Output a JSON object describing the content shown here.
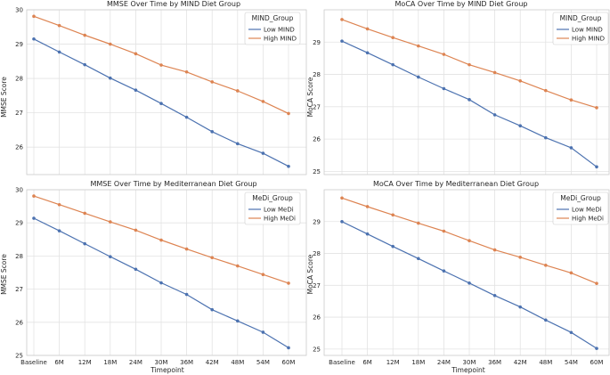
{
  "chart_data": [
    {
      "type": "line",
      "title": "MMSE Over Time by MIND Diet Group",
      "xlabel": "",
      "ylabel": "MMSE Score",
      "categories": [
        "Baseline",
        "6M",
        "12M",
        "18M",
        "24M",
        "30M",
        "36M",
        "42M",
        "48M",
        "54M",
        "60M"
      ],
      "show_xticklabels": false,
      "ylim": [
        25.2,
        30.0
      ],
      "yticks": [
        26,
        27,
        28,
        29,
        30
      ],
      "grid": true,
      "legend": {
        "title": "MIND_Group",
        "position": "top-right"
      },
      "series": [
        {
          "name": "Low MIND",
          "color": "#4c72b0",
          "values": [
            29.15,
            28.77,
            28.4,
            28.01,
            27.66,
            27.27,
            26.87,
            26.45,
            26.1,
            25.82,
            25.44
          ]
        },
        {
          "name": "High MIND",
          "color": "#dd8452",
          "values": [
            29.81,
            29.54,
            29.26,
            29.0,
            28.72,
            28.39,
            28.19,
            27.9,
            27.64,
            27.33,
            26.98
          ]
        }
      ]
    },
    {
      "type": "line",
      "title": "MoCA Over Time by MIND Diet Group",
      "xlabel": "",
      "ylabel": "MoCA Score",
      "categories": [
        "Baseline",
        "6M",
        "12M",
        "18M",
        "24M",
        "30M",
        "36M",
        "42M",
        "48M",
        "54M",
        "60M"
      ],
      "show_xticklabels": false,
      "ylim": [
        24.9,
        30.0
      ],
      "yticks": [
        25,
        26,
        27,
        28,
        29
      ],
      "grid": true,
      "legend": {
        "title": "MIND_Group",
        "position": "top-right"
      },
      "series": [
        {
          "name": "Low MIND",
          "color": "#4c72b0",
          "values": [
            29.03,
            28.67,
            28.3,
            27.92,
            27.56,
            27.22,
            26.75,
            26.41,
            26.04,
            25.73,
            25.14
          ]
        },
        {
          "name": "High MIND",
          "color": "#dd8452",
          "values": [
            29.7,
            29.41,
            29.14,
            28.88,
            28.62,
            28.3,
            28.06,
            27.8,
            27.5,
            27.21,
            26.97
          ]
        }
      ]
    },
    {
      "type": "line",
      "title": "MMSE Over Time by Mediterranean Diet Group",
      "xlabel": "Timepoint",
      "ylabel": "MMSE Score",
      "categories": [
        "Baseline",
        "6M",
        "12M",
        "18M",
        "24M",
        "30M",
        "36M",
        "42M",
        "48M",
        "54M",
        "60M"
      ],
      "show_xticklabels": true,
      "ylim": [
        25.0,
        30.0
      ],
      "yticks": [
        25,
        26,
        27,
        28,
        29,
        30
      ],
      "grid": true,
      "legend": {
        "title": "MeDi_Group",
        "position": "top-right"
      },
      "series": [
        {
          "name": "Low MeDi",
          "color": "#4c72b0",
          "values": [
            29.14,
            28.76,
            28.37,
            27.98,
            27.6,
            27.19,
            26.84,
            26.38,
            26.04,
            25.7,
            25.23
          ]
        },
        {
          "name": "High MeDi",
          "color": "#dd8452",
          "values": [
            29.81,
            29.55,
            29.29,
            29.03,
            28.78,
            28.48,
            28.21,
            27.95,
            27.7,
            27.44,
            27.18
          ]
        }
      ]
    },
    {
      "type": "line",
      "title": "MoCA Over Time by Mediterranean Diet Group",
      "xlabel": "Timepoint",
      "ylabel": "MoCA Score",
      "categories": [
        "Baseline",
        "6M",
        "12M",
        "18M",
        "24M",
        "30M",
        "36M",
        "42M",
        "48M",
        "54M",
        "60M"
      ],
      "show_xticklabels": true,
      "ylim": [
        24.8,
        30.0
      ],
      "yticks": [
        25,
        26,
        27,
        28,
        29
      ],
      "grid": true,
      "legend": {
        "title": "MeDi_Group",
        "position": "top-right"
      },
      "series": [
        {
          "name": "Low MeDi",
          "color": "#4c72b0",
          "values": [
            29.0,
            28.61,
            28.22,
            27.84,
            27.45,
            27.07,
            26.68,
            26.32,
            25.91,
            25.52,
            25.02
          ]
        },
        {
          "name": "High MeDi",
          "color": "#dd8452",
          "values": [
            29.74,
            29.47,
            29.21,
            28.95,
            28.7,
            28.4,
            28.11,
            27.88,
            27.63,
            27.39,
            27.06
          ]
        }
      ]
    }
  ]
}
